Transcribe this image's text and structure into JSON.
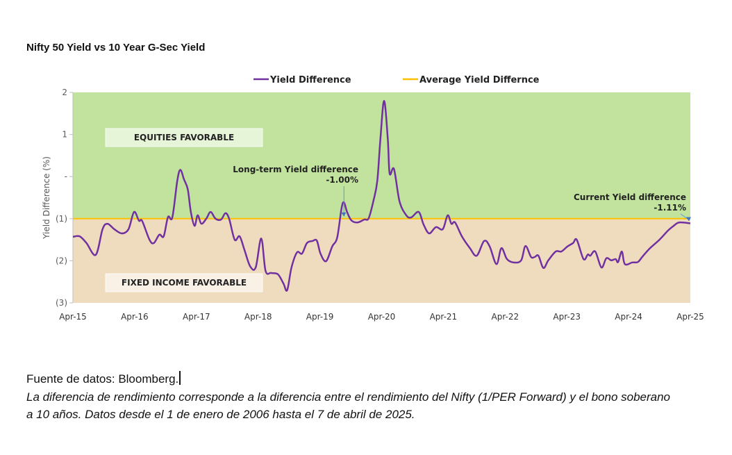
{
  "chart_data": {
    "type": "line",
    "title": "Nifty 50 Yield vs 10 Year G-Sec Yield",
    "xlabel": "",
    "ylabel": "Yield Difference (%)",
    "xlim": [
      0,
      10
    ],
    "ylim": [
      -3,
      2
    ],
    "x_unit": "years since Apr-15",
    "x_ticks": [
      0,
      1,
      2,
      3,
      4,
      5,
      6,
      7,
      8,
      9,
      10
    ],
    "x_tick_labels": [
      "Apr-15",
      "Apr-16",
      "Apr-17",
      "Apr-18",
      "Apr-19",
      "Apr-20",
      "Apr-21",
      "Apr-22",
      "Apr-23",
      "Apr-24",
      "Apr-25"
    ],
    "y_ticks": [
      2,
      1,
      0,
      -1,
      -2,
      -3
    ],
    "y_tick_labels": [
      "2",
      "1",
      "-",
      "(1)",
      "(2)",
      "(3)"
    ],
    "legend": {
      "position": "top-center",
      "entries": [
        {
          "name": "Yield Difference",
          "color": "#7030a0"
        },
        {
          "name": "Average Yield Differnce",
          "color": "#ffc000"
        }
      ]
    },
    "regions": [
      {
        "label": "EQUITIES FAVORABLE",
        "from": -1.0,
        "to": 2,
        "color": "#c1e39e"
      },
      {
        "label": "FIXED INCOME FAVORABLE",
        "from": -3,
        "to": -1.0,
        "color": "#efdcbf"
      }
    ],
    "series": [
      {
        "name": "Yield Difference",
        "color": "#7030a0",
        "x": [
          0,
          0.11,
          0.22,
          0.37,
          0.48,
          0.56,
          0.67,
          0.79,
          0.9,
          0.99,
          1.07,
          1.12,
          1.24,
          1.31,
          1.4,
          1.47,
          1.54,
          1.61,
          1.69,
          1.74,
          1.8,
          1.86,
          1.91,
          1.97,
          2.02,
          2.08,
          2.16,
          2.23,
          2.31,
          2.4,
          2.47,
          2.53,
          2.62,
          2.7,
          2.78,
          2.87,
          2.96,
          3.05,
          3.12,
          3.21,
          3.32,
          3.41,
          3.47,
          3.54,
          3.63,
          3.71,
          3.79,
          3.88,
          3.95,
          4.01,
          4.1,
          4.2,
          4.28,
          4.35,
          4.39,
          4.44,
          4.51,
          4.61,
          4.72,
          4.79,
          4.87,
          4.93,
          4.98,
          5.04,
          5.1,
          5.13,
          5.2,
          5.29,
          5.4,
          5.48,
          5.6,
          5.68,
          5.77,
          5.88,
          5.99,
          6.07,
          6.13,
          6.19,
          6.3,
          6.43,
          6.54,
          6.66,
          6.75,
          6.86,
          6.94,
          7.03,
          7.14,
          7.26,
          7.33,
          7.42,
          7.48,
          7.54,
          7.62,
          7.7,
          7.82,
          7.91,
          8.01,
          8.1,
          8.16,
          8.27,
          8.34,
          8.38,
          8.46,
          8.56,
          8.64,
          8.72,
          8.79,
          8.83,
          8.89,
          8.94,
          9.06,
          9.15,
          9.22,
          9.34,
          9.5,
          9.64,
          9.73,
          9.82,
          10.0
        ],
        "values": [
          -1.43,
          -1.42,
          -1.58,
          -1.86,
          -1.25,
          -1.12,
          -1.25,
          -1.35,
          -1.25,
          -0.84,
          -1.05,
          -1.05,
          -1.5,
          -1.58,
          -1.38,
          -1.42,
          -0.96,
          -0.97,
          -0.1,
          0.16,
          -0.07,
          -0.3,
          -0.84,
          -1.17,
          -0.92,
          -1.12,
          -1.0,
          -0.84,
          -1.0,
          -1.02,
          -0.87,
          -1.0,
          -1.5,
          -1.42,
          -1.75,
          -2.13,
          -2.16,
          -1.47,
          -2.24,
          -2.29,
          -2.32,
          -2.54,
          -2.7,
          -2.16,
          -1.8,
          -1.83,
          -1.58,
          -1.53,
          -1.52,
          -1.83,
          -2.01,
          -1.66,
          -1.45,
          -0.76,
          -0.61,
          -0.84,
          -1.04,
          -1.09,
          -1.02,
          -0.99,
          -0.56,
          -0.1,
          0.89,
          1.8,
          0.89,
          0.07,
          0.18,
          -0.59,
          -0.92,
          -0.97,
          -0.84,
          -1.14,
          -1.35,
          -1.2,
          -1.25,
          -0.92,
          -1.12,
          -1.09,
          -1.42,
          -1.7,
          -1.88,
          -1.53,
          -1.66,
          -2.08,
          -1.7,
          -1.96,
          -2.04,
          -1.99,
          -1.65,
          -1.91,
          -1.91,
          -1.88,
          -2.17,
          -1.99,
          -1.78,
          -1.78,
          -1.66,
          -1.58,
          -1.5,
          -1.96,
          -1.85,
          -1.88,
          -1.78,
          -2.16,
          -1.94,
          -1.99,
          -1.96,
          -2.03,
          -1.78,
          -2.08,
          -2.04,
          -2.03,
          -1.91,
          -1.71,
          -1.5,
          -1.28,
          -1.17,
          -1.09,
          -1.11
        ]
      },
      {
        "name": "Average Yield Differnce",
        "color": "#ffc000",
        "constant": -1.0
      }
    ],
    "annotations": [
      {
        "text": "Long-term Yield difference",
        "value_text": "-1.00%",
        "x": 4.39,
        "y": -1.0
      },
      {
        "text": "Current Yield difference",
        "value_text": "-1.11%",
        "x": 10.0,
        "y": -1.11
      }
    ]
  },
  "footer": {
    "source": "Fuente de datos: Bloomberg.",
    "note": "La diferencia de rendimiento corresponde a la diferencia entre el rendimiento del Nifty (1/PER Forward) y el bono soberano a 10 años. Datos desde el 1 de enero de 2006 hasta el 7 de abril de 2025."
  }
}
